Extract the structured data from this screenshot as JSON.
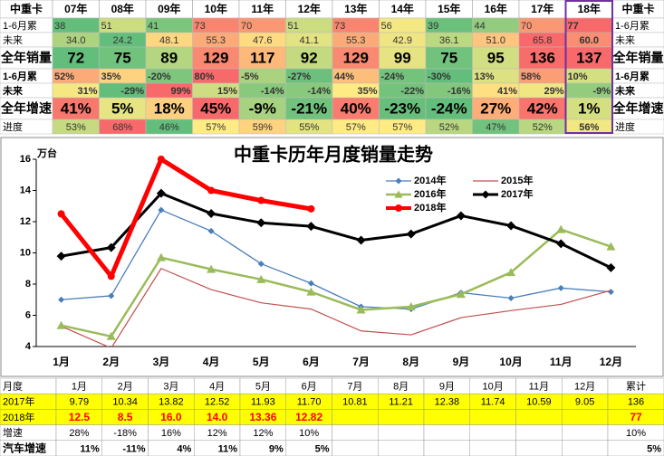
{
  "top_table": {
    "header": [
      "中重卡",
      "07年",
      "08年",
      "09年",
      "10年",
      "11年",
      "12年",
      "13年",
      "14年",
      "15年",
      "16年",
      "17年",
      "18年",
      "中重卡"
    ],
    "rows": [
      [
        "1-6月累",
        "38",
        "51",
        "41",
        "73",
        "70",
        "51",
        "73",
        "56",
        "39",
        "44",
        "70",
        "77",
        "1-6月累"
      ],
      [
        "未来",
        "34.0",
        "24.2",
        "48.1",
        "55.3",
        "47.6",
        "41.1",
        "55.3",
        "42.9",
        "36.1",
        "51.0",
        "65.8",
        "60.0",
        "未来"
      ],
      [
        "全年销量",
        "72",
        "75",
        "89",
        "129",
        "117",
        "92",
        "129",
        "99",
        "75",
        "95",
        "136",
        "137",
        "全年销量"
      ],
      [
        "1-6月累",
        "52%",
        "35%",
        "-20%",
        "80%",
        "-5%",
        "-27%",
        "44%",
        "-24%",
        "-30%",
        "13%",
        "58%",
        "10%",
        "1-6月累"
      ],
      [
        "未来",
        "31%",
        "-29%",
        "99%",
        "15%",
        "-14%",
        "-14%",
        "35%",
        "-22%",
        "-16%",
        "41%",
        "29%",
        "-9%",
        "未来"
      ],
      [
        "全年增速",
        "41%",
        "5%",
        "18%",
        "45%",
        "-9%",
        "-21%",
        "40%",
        "-23%",
        "-24%",
        "27%",
        "42%",
        "1%",
        "全年增速"
      ],
      [
        "进度",
        "53%",
        "68%",
        "46%",
        "57%",
        "59%",
        "55%",
        "57%",
        "57%",
        "52%",
        "47%",
        "52%",
        "56%",
        "进度"
      ]
    ]
  },
  "chart_data": {
    "type": "line",
    "title": "中重卡历年月度销量走势",
    "y_label": "万台",
    "categories": [
      "1月",
      "2月",
      "3月",
      "4月",
      "5月",
      "6月",
      "7月",
      "8月",
      "9月",
      "10月",
      "11月",
      "12月"
    ],
    "ylim": [
      4,
      16
    ],
    "yticks": [
      4,
      6,
      8,
      10,
      12,
      14,
      16
    ],
    "series": [
      {
        "name": "2014年",
        "color": "#4a7ebb",
        "values": [
          7.0,
          7.25,
          12.75,
          11.4,
          9.3,
          8.05,
          6.55,
          6.4,
          7.45,
          7.1,
          7.75,
          7.5
        ]
      },
      {
        "name": "2015年",
        "color": "#c0504d",
        "values": [
          5.3,
          3.9,
          9.0,
          7.65,
          6.8,
          6.4,
          5.0,
          4.75,
          5.85,
          6.3,
          6.7,
          7.6
        ]
      },
      {
        "name": "2016年",
        "color": "#9bbb59",
        "values": [
          5.35,
          4.65,
          9.7,
          8.95,
          8.3,
          7.5,
          6.35,
          6.55,
          7.35,
          8.75,
          11.5,
          10.4
        ]
      },
      {
        "name": "2017年",
        "color": "#000000",
        "values": [
          9.79,
          10.34,
          13.82,
          12.52,
          11.93,
          11.7,
          10.81,
          11.21,
          12.38,
          11.74,
          10.59,
          9.05
        ]
      },
      {
        "name": "2018年",
        "color": "#ff0000",
        "values": [
          12.5,
          8.5,
          16.0,
          14.0,
          13.36,
          12.82,
          null,
          null,
          null,
          null,
          null,
          null
        ]
      }
    ]
  },
  "bottom_table": {
    "header": [
      "月度",
      "1月",
      "2月",
      "3月",
      "4月",
      "5月",
      "6月",
      "7月",
      "8月",
      "9月",
      "10月",
      "11月",
      "12月",
      "累计"
    ],
    "rows": [
      [
        "2017年",
        "9.79",
        "10.34",
        "13.82",
        "12.52",
        "11.93",
        "11.70",
        "10.81",
        "11.21",
        "12.38",
        "11.74",
        "10.59",
        "9.05",
        "136"
      ],
      [
        "2018年",
        "12.5",
        "8.5",
        "16.0",
        "14.0",
        "13.36",
        "12.82",
        null,
        null,
        null,
        null,
        null,
        null,
        "77"
      ],
      [
        "增速",
        "28%",
        "-18%",
        "16%",
        "12%",
        "12%",
        "10%",
        null,
        null,
        null,
        null,
        null,
        null,
        "10%"
      ],
      [
        "汽车增速",
        "11%",
        "-11%",
        "4%",
        "11%",
        "9%",
        "5%",
        null,
        null,
        null,
        null,
        null,
        null,
        "5%"
      ]
    ]
  }
}
